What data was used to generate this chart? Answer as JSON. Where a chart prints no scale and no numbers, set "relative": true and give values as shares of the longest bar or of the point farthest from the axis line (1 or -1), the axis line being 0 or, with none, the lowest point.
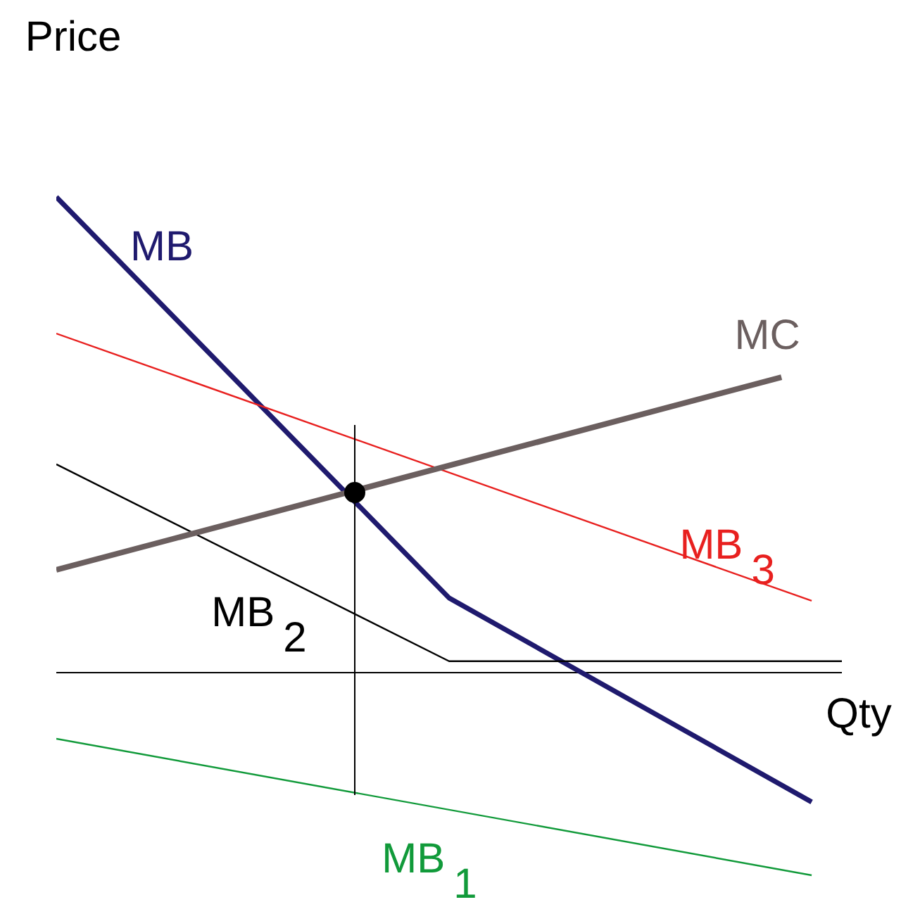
{
  "chart_data": {
    "type": "line",
    "relative": true,
    "xlabel": "Qty",
    "ylabel": "Price",
    "legend": false,
    "grid": false,
    "marker": "none",
    "categories": [
      null,
      null,
      null,
      null,
      null,
      null,
      null,
      null,
      null,
      null,
      null,
      null,
      null,
      null,
      null,
      null,
      null,
      null,
      null,
      null,
      null,
      null,
      null,
      null,
      null,
      null,
      null
    ],
    "series": [
      {
        "name": "MB",
        "color": "#1f1a6e",
        "values": [
          1,
          null,
          null,
          null,
          null,
          null,
          null,
          null,
          null,
          null,
          null,
          null,
          null,
          0.157,
          null,
          null,
          null,
          null,
          null,
          null,
          null,
          null,
          null,
          null,
          null,
          -0.272,
          null
        ]
      },
      {
        "name": "MB$_{3}$",
        "color": "#e8201f",
        "values": [
          0.713,
          null,
          null,
          null,
          null,
          null,
          null,
          null,
          null,
          null,
          null,
          null,
          null,
          null,
          null,
          null,
          null,
          null,
          null,
          null,
          null,
          null,
          null,
          null,
          null,
          0.151,
          null
        ]
      },
      {
        "name": "MB$_{2}$",
        "color": "#000000",
        "values": [
          0.438,
          null,
          null,
          null,
          null,
          null,
          null,
          null,
          null,
          null,
          null,
          null,
          null,
          0.024,
          null,
          null,
          null,
          null,
          null,
          null,
          null,
          null,
          null,
          null,
          null,
          null,
          0.024
        ]
      },
      {
        "name": "MC",
        "color": "#6b5f5f",
        "values": [
          0.216,
          null,
          null,
          null,
          null,
          null,
          null,
          null,
          null,
          null,
          null,
          null,
          null,
          null,
          null,
          null,
          null,
          null,
          null,
          null,
          null,
          null,
          null,
          null,
          0.621,
          null,
          null
        ]
      },
      {
        "name": "MB$_{1}$",
        "color": "#119a3a",
        "values": [
          -0.139,
          null,
          null,
          null,
          null,
          null,
          null,
          null,
          null,
          null,
          null,
          null,
          null,
          null,
          null,
          null,
          null,
          null,
          null,
          null,
          null,
          null,
          null,
          null,
          null,
          -0.426,
          null
        ]
      }
    ]
  }
}
